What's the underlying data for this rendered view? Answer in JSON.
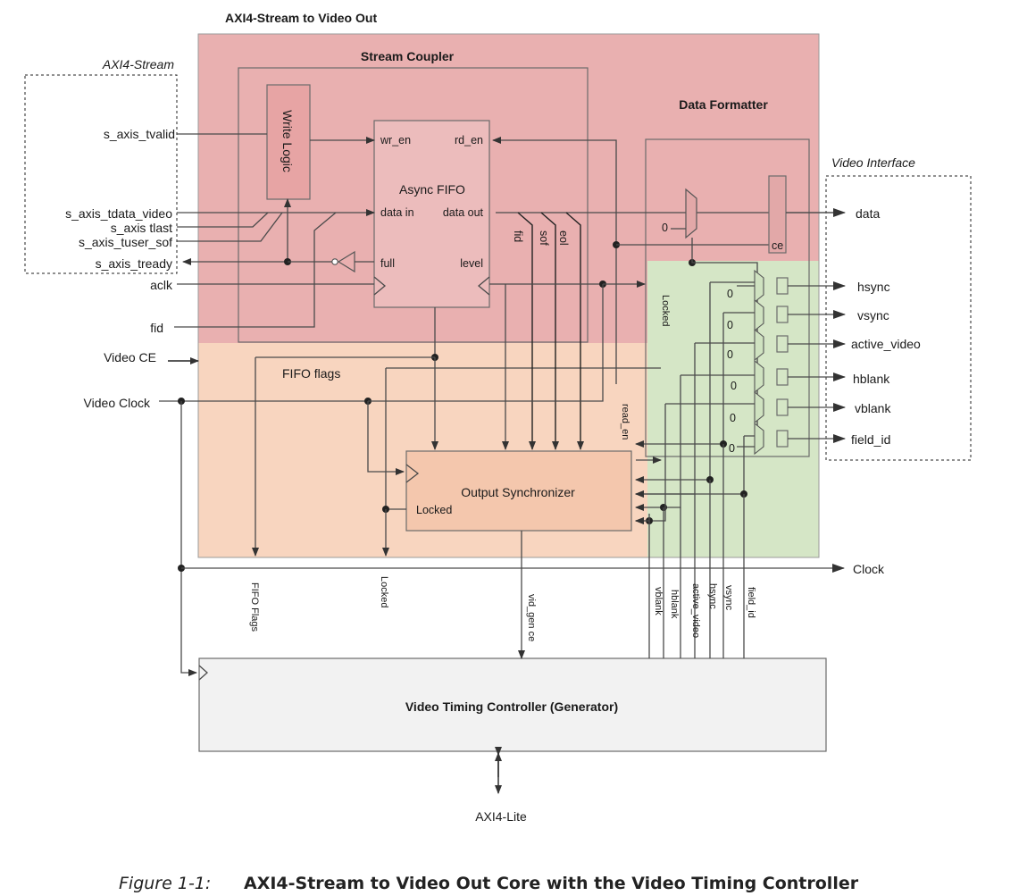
{
  "title": "AXI4-Stream to Video Out",
  "groups": {
    "axi4_stream": "AXI4-Stream",
    "video_interface": "Video Interface"
  },
  "blocks": {
    "stream_coupler": "Stream Coupler",
    "data_formatter": "Data Formatter",
    "write_logic": "Write Logic",
    "async_fifo": "Async FIFO",
    "output_synchronizer": "Output Synchronizer",
    "vtc": "Video Timing Controller (Generator)"
  },
  "fifo_ports": {
    "wr_en": "wr_en",
    "rd_en": "rd_en",
    "data_in": "data in",
    "data_out": "data out",
    "full": "full",
    "level": "level"
  },
  "inputs": {
    "s_axis_tvalid": "s_axis_tvalid",
    "s_axis_tdata_video": "s_axis_tdata_video",
    "s_axis_tlast": "s_axis tlast",
    "s_axis_tuser_sof": "s_axis_tuser_sof",
    "s_axis_tready": "s_axis_tready",
    "aclk": "aclk",
    "fid": "fid",
    "video_ce": "Video CE",
    "video_clock": "Video Clock"
  },
  "outputs": [
    "data",
    "hsync",
    "vsync",
    "active_video",
    "hblank",
    "vblank",
    "field_id"
  ],
  "clock_out": "Clock",
  "axi4_lite": "AXI4-Lite",
  "internal": {
    "fifo_flags": "FIFO flags",
    "fid": "fid",
    "sof": "sof",
    "eol": "eol",
    "locked_formatter": "Locked",
    "read_en": "read_en",
    "locked_sync": "Locked",
    "ce": "ce",
    "zero": "0"
  },
  "bottom_signals": {
    "fifo_flags": "FIFO Flags",
    "locked": "Locked",
    "vid_gen_ce": "vid_gen ce",
    "vblank": "vblank",
    "hblank": "hblank",
    "active_video": "active_video",
    "hsync": "hsync",
    "vsync": "vsync",
    "field_id": "field_id"
  },
  "caption": {
    "label": "Figure 1-1:",
    "text": "AXI4-Stream to Video Out Core with the Video Timing Controller"
  },
  "colors": {
    "stream_region": "#e9b0b0",
    "sync_region": "#f8d5bf",
    "formatter_region": "#d5e6c6",
    "vtc_fill": "#f2f2f2"
  }
}
